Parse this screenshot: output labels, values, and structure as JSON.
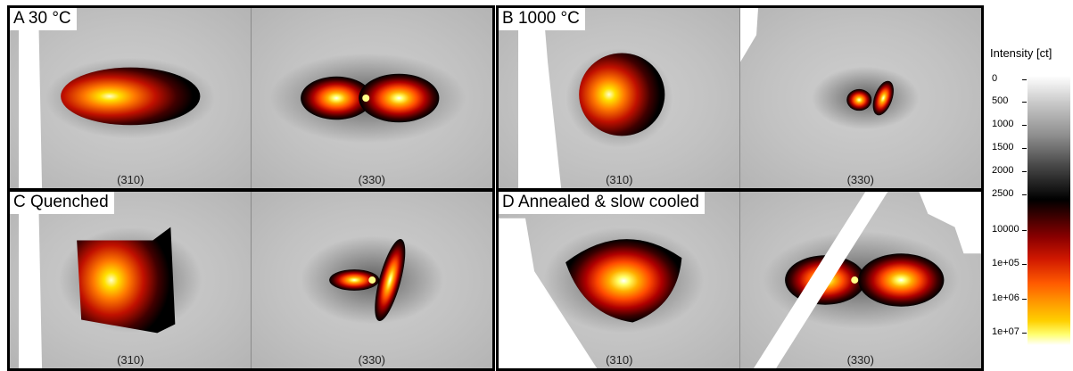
{
  "panels": [
    {
      "label": "A  30 °C",
      "left_hkl": "(310)",
      "right_hkl": "(330)"
    },
    {
      "label": "B  1000 °C",
      "left_hkl": "(310)",
      "right_hkl": "(330)"
    },
    {
      "label": "C  Quenched",
      "left_hkl": "(310)",
      "right_hkl": "(330)"
    },
    {
      "label": "D  Annealed & slow cooled",
      "left_hkl": "(310)",
      "right_hkl": "(330)"
    }
  ],
  "colorbar": {
    "title": "Intensity [ct]",
    "ticks": [
      "0",
      "500",
      "1000",
      "1500",
      "2000",
      "2500",
      "10000",
      "1e+05",
      "1e+06",
      "1e+07"
    ]
  }
}
